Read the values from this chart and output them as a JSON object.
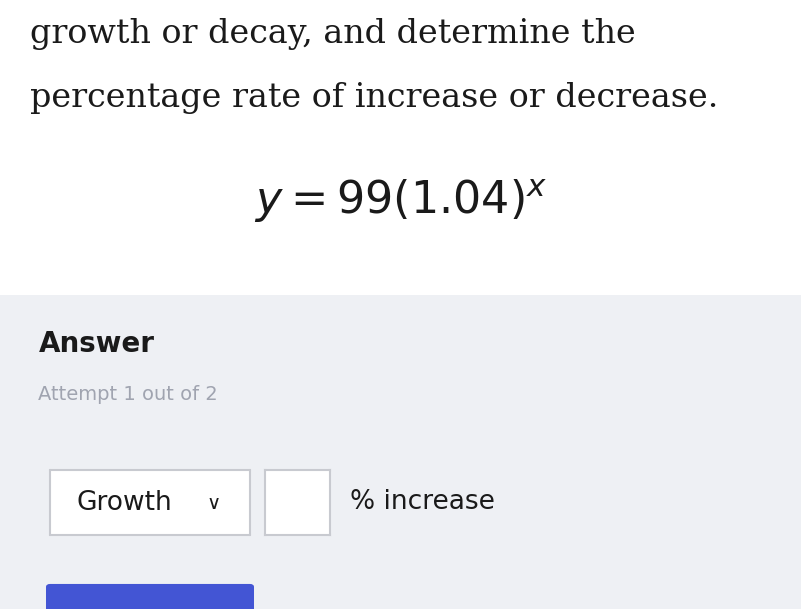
{
  "top_text_line1": "growth or decay, and determine the",
  "top_text_line2": "percentage rate of increase or decrease.",
  "answer_label": "Answer",
  "attempt_text": "Attempt 1 out of 2",
  "dropdown_text": "Growth",
  "chevron": "∨",
  "percent_increase_text": "% increase",
  "bg_top": "#ffffff",
  "bg_bottom": "#eef0f4",
  "text_color_main": "#1a1a1a",
  "text_color_attempt": "#a0a4b0",
  "dropdown_border": "#c8cad0",
  "input_box_border": "#c8cad0",
  "input_box_bg": "#ffffff",
  "bottom_bar_color": "#4355d4",
  "fig_width": 8.01,
  "fig_height": 6.09,
  "dpi": 100
}
